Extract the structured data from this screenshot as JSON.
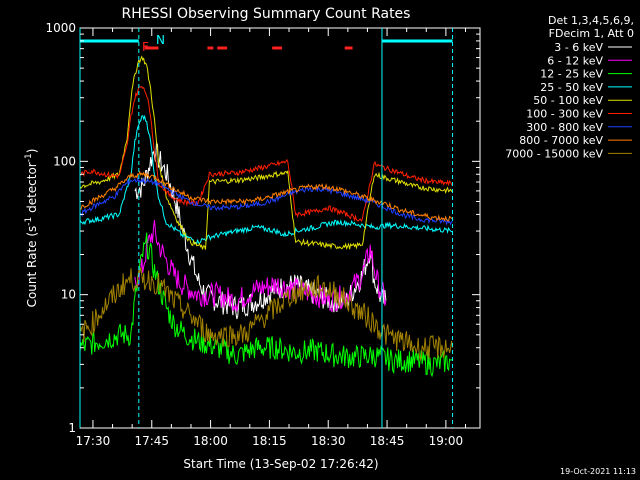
{
  "chart_data": {
    "type": "line",
    "title": "RHESSI Observing Summary Count Rates",
    "xlabel": "Start Time (13-Sep-02 17:26:42)",
    "ylabel": "Count Rate (s",
    "ylabel_sup": "-1",
    "ylabel_mid": " detector",
    "ylabel_end": ")",
    "y_scale": "log",
    "ylim": [
      1,
      1000
    ],
    "xlim_minutes": [
      0,
      102
    ],
    "x_tick_labels": [
      "17:30",
      "17:45",
      "18:00",
      "18:15",
      "18:30",
      "18:45",
      "19:00"
    ],
    "x_tick_minutes": [
      3.3,
      18.3,
      33.3,
      48.3,
      63.3,
      78.3,
      93.3
    ],
    "y_tick_labels": [
      "1",
      "10",
      "100",
      "1000"
    ],
    "y_tick_values": [
      1,
      10,
      100,
      1000
    ],
    "legend_header": [
      "Det 1,3,4,5,6,9,",
      "FDecim 1, Att 0"
    ],
    "legend_placement": "right",
    "annotations": {
      "flare_flag": "F",
      "night_flag": "N",
      "timestamp": "19-Oct-2021 11:13"
    },
    "series": [
      {
        "name": "3 - 6 keV",
        "color": "#ffffff",
        "points": [
          [
            14,
            60
          ],
          [
            16,
            65
          ],
          [
            17,
            80
          ],
          [
            18,
            100
          ],
          [
            19,
            125
          ],
          [
            20,
            105
          ],
          [
            22,
            82
          ],
          [
            24,
            55
          ],
          [
            26,
            32
          ],
          [
            28,
            20
          ],
          [
            30,
            13
          ],
          [
            32,
            10
          ],
          [
            35,
            9
          ],
          [
            40,
            8
          ],
          [
            45,
            9
          ],
          [
            50,
            11
          ],
          [
            55,
            12
          ],
          [
            60,
            10
          ],
          [
            64,
            9
          ],
          [
            68,
            9
          ],
          [
            72,
            14
          ],
          [
            74,
            22
          ],
          [
            75,
            13
          ],
          [
            77,
            9
          ],
          [
            78,
            9
          ]
        ]
      },
      {
        "name": "6 - 12 keV",
        "color": "#ff00ff",
        "points": [
          [
            14,
            12
          ],
          [
            16,
            16
          ],
          [
            17,
            22
          ],
          [
            18,
            27
          ],
          [
            19,
            30
          ],
          [
            20,
            24
          ],
          [
            22,
            18
          ],
          [
            24,
            14
          ],
          [
            26,
            12
          ],
          [
            28,
            11
          ],
          [
            30,
            10
          ],
          [
            35,
            10
          ],
          [
            40,
            9
          ],
          [
            45,
            11
          ],
          [
            50,
            12
          ],
          [
            55,
            11
          ],
          [
            60,
            10
          ],
          [
            64,
            9
          ],
          [
            68,
            10
          ],
          [
            72,
            14
          ],
          [
            74,
            22
          ],
          [
            76,
            12
          ],
          [
            78,
            9
          ]
        ]
      },
      {
        "name": "12 - 25 keV",
        "color": "#00ff00",
        "points": [
          [
            0,
            4
          ],
          [
            5,
            4.5
          ],
          [
            10,
            5
          ],
          [
            13,
            5
          ],
          [
            14,
            9
          ],
          [
            15,
            14
          ],
          [
            16,
            20
          ],
          [
            17,
            24
          ],
          [
            18,
            20
          ],
          [
            19,
            15
          ],
          [
            20,
            12
          ],
          [
            22,
            8
          ],
          [
            24,
            6
          ],
          [
            27,
            5
          ],
          [
            30,
            4.5
          ],
          [
            35,
            4
          ],
          [
            40,
            3.5
          ],
          [
            45,
            4
          ],
          [
            50,
            4
          ],
          [
            55,
            3.7
          ],
          [
            60,
            3.8
          ],
          [
            65,
            3.5
          ],
          [
            70,
            3.4
          ],
          [
            75,
            3.5
          ],
          [
            80,
            3.2
          ],
          [
            85,
            3.2
          ],
          [
            90,
            3
          ],
          [
            95,
            3.2
          ]
        ]
      },
      {
        "name": "25 - 50 keV",
        "color": "#00ffff",
        "points": [
          [
            0,
            35
          ],
          [
            5,
            37
          ],
          [
            10,
            40
          ],
          [
            13,
            80
          ],
          [
            14,
            140
          ],
          [
            15,
            190
          ],
          [
            16,
            220
          ],
          [
            17,
            200
          ],
          [
            18,
            140
          ],
          [
            19,
            80
          ],
          [
            20,
            55
          ],
          [
            22,
            35
          ],
          [
            26,
            28
          ],
          [
            30,
            25
          ],
          [
            33,
            27
          ],
          [
            40,
            30
          ],
          [
            45,
            32
          ],
          [
            50,
            30
          ],
          [
            52,
            28
          ],
          [
            55,
            30
          ],
          [
            60,
            32
          ],
          [
            63,
            34
          ],
          [
            66,
            35
          ],
          [
            70,
            34
          ],
          [
            75,
            32
          ],
          [
            78,
            33
          ],
          [
            80,
            33
          ],
          [
            85,
            32
          ],
          [
            90,
            31
          ],
          [
            95,
            30
          ]
        ]
      },
      {
        "name": "50 - 100 keV",
        "color": "#e0e000",
        "points": [
          [
            0,
            65
          ],
          [
            5,
            70
          ],
          [
            10,
            80
          ],
          [
            12,
            150
          ],
          [
            13,
            300
          ],
          [
            14,
            450
          ],
          [
            15,
            570
          ],
          [
            16,
            600
          ],
          [
            17,
            520
          ],
          [
            18,
            350
          ],
          [
            19,
            200
          ],
          [
            20,
            100
          ],
          [
            22,
            55
          ],
          [
            25,
            35
          ],
          [
            28,
            25
          ],
          [
            32,
            22
          ],
          [
            33,
            70
          ],
          [
            40,
            72
          ],
          [
            45,
            75
          ],
          [
            50,
            80
          ],
          [
            53,
            82
          ],
          [
            55,
            25
          ],
          [
            60,
            24
          ],
          [
            65,
            23
          ],
          [
            70,
            23
          ],
          [
            72,
            24
          ],
          [
            75,
            80
          ],
          [
            78,
            75
          ],
          [
            82,
            70
          ],
          [
            85,
            65
          ],
          [
            90,
            62
          ],
          [
            95,
            60
          ]
        ]
      },
      {
        "name": "100 - 300 keV",
        "color": "#ff2000",
        "points": [
          [
            0,
            80
          ],
          [
            3,
            85
          ],
          [
            8,
            78
          ],
          [
            10,
            78
          ],
          [
            12,
            130
          ],
          [
            13,
            220
          ],
          [
            14,
            300
          ],
          [
            15,
            350
          ],
          [
            16,
            370
          ],
          [
            17,
            320
          ],
          [
            18,
            220
          ],
          [
            19,
            120
          ],
          [
            20,
            70
          ],
          [
            23,
            55
          ],
          [
            26,
            50
          ],
          [
            30,
            48
          ],
          [
            33,
            80
          ],
          [
            40,
            82
          ],
          [
            45,
            88
          ],
          [
            50,
            95
          ],
          [
            53,
            100
          ],
          [
            55,
            40
          ],
          [
            60,
            42
          ],
          [
            63,
            45
          ],
          [
            66,
            42
          ],
          [
            70,
            38
          ],
          [
            72,
            36
          ],
          [
            75,
            95
          ],
          [
            80,
            85
          ],
          [
            85,
            75
          ],
          [
            90,
            70
          ],
          [
            95,
            68
          ]
        ]
      },
      {
        "name": "300 - 800 keV",
        "color": "#2040ff",
        "points": [
          [
            0,
            40
          ],
          [
            3,
            45
          ],
          [
            6,
            50
          ],
          [
            9,
            55
          ],
          [
            11,
            65
          ],
          [
            13,
            72
          ],
          [
            16,
            72
          ],
          [
            18,
            70
          ],
          [
            20,
            68
          ],
          [
            24,
            58
          ],
          [
            28,
            50
          ],
          [
            33,
            45
          ],
          [
            38,
            45
          ],
          [
            42,
            46
          ],
          [
            46,
            48
          ],
          [
            50,
            52
          ],
          [
            54,
            58
          ],
          [
            58,
            62
          ],
          [
            62,
            62
          ],
          [
            66,
            58
          ],
          [
            70,
            54
          ],
          [
            74,
            50
          ],
          [
            78,
            45
          ],
          [
            82,
            40
          ],
          [
            86,
            37
          ],
          [
            90,
            36
          ],
          [
            95,
            35
          ]
        ]
      },
      {
        "name": "800 - 7000 keV",
        "color": "#ff8000",
        "points": [
          [
            0,
            45
          ],
          [
            3,
            50
          ],
          [
            6,
            56
          ],
          [
            9,
            63
          ],
          [
            11,
            70
          ],
          [
            13,
            78
          ],
          [
            16,
            80
          ],
          [
            18,
            78
          ],
          [
            20,
            74
          ],
          [
            24,
            62
          ],
          [
            28,
            54
          ],
          [
            33,
            50
          ],
          [
            38,
            50
          ],
          [
            42,
            50
          ],
          [
            46,
            52
          ],
          [
            50,
            56
          ],
          [
            54,
            60
          ],
          [
            58,
            64
          ],
          [
            62,
            65
          ],
          [
            66,
            62
          ],
          [
            70,
            57
          ],
          [
            74,
            52
          ],
          [
            78,
            48
          ],
          [
            82,
            43
          ],
          [
            86,
            40
          ],
          [
            90,
            38
          ],
          [
            95,
            37
          ]
        ]
      },
      {
        "name": "7000 - 15000 keV",
        "color": "#a08000",
        "points": [
          [
            0,
            5
          ],
          [
            3,
            6
          ],
          [
            6,
            8
          ],
          [
            9,
            10
          ],
          [
            11,
            12
          ],
          [
            13,
            13
          ],
          [
            16,
            13
          ],
          [
            18,
            13
          ],
          [
            20,
            12
          ],
          [
            24,
            9
          ],
          [
            28,
            7
          ],
          [
            33,
            5
          ],
          [
            38,
            5
          ],
          [
            42,
            5
          ],
          [
            46,
            6.5
          ],
          [
            50,
            8
          ],
          [
            54,
            10
          ],
          [
            58,
            11
          ],
          [
            62,
            11.5
          ],
          [
            66,
            10
          ],
          [
            70,
            8
          ],
          [
            74,
            6.5
          ],
          [
            78,
            5
          ],
          [
            82,
            4.5
          ],
          [
            86,
            4
          ],
          [
            90,
            4
          ],
          [
            95,
            4
          ]
        ]
      }
    ],
    "saa_segments_minutes": [
      [
        0,
        15
      ],
      [
        77,
        95
      ]
    ],
    "flare_segments_minutes": [
      [
        16.5,
        20
      ],
      [
        32.5,
        34
      ],
      [
        35,
        37.5
      ],
      [
        49,
        51.5
      ],
      [
        67.5,
        69.5
      ]
    ]
  }
}
